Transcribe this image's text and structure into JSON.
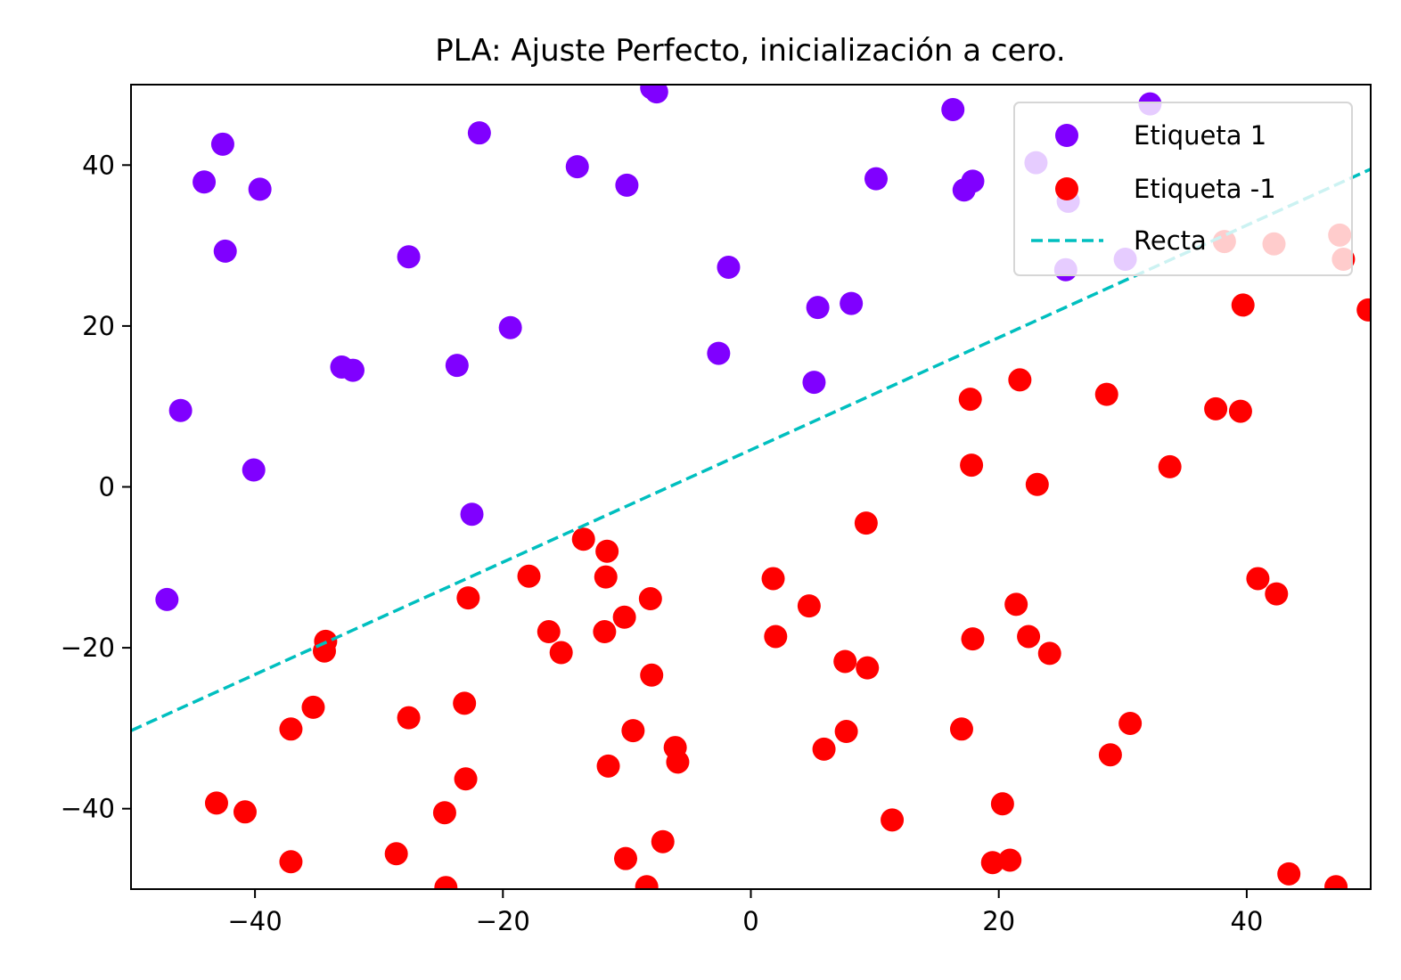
{
  "chart_data": {
    "type": "scatter",
    "title": "PLA: Ajuste Perfecto, inicialización a cero.",
    "xlabel": "",
    "ylabel": "",
    "xlim": [
      -50,
      50
    ],
    "ylim": [
      -50,
      50
    ],
    "xticks": [
      -40,
      -20,
      0,
      20,
      40
    ],
    "yticks": [
      -40,
      -20,
      0,
      20,
      40
    ],
    "xtick_labels": [
      "−40",
      "−20",
      "0",
      "20",
      "40"
    ],
    "ytick_labels": [
      "−40",
      "−20",
      "0",
      "20",
      "40"
    ],
    "grid": false,
    "legend_position": "top-right",
    "series": [
      {
        "name": "Etiqueta 1",
        "color": "#8000ff",
        "points": [
          [
            -47.1,
            -14.0
          ],
          [
            -46.0,
            9.5
          ],
          [
            -44.1,
            37.9
          ],
          [
            -42.6,
            42.6
          ],
          [
            -42.4,
            29.3
          ],
          [
            -40.1,
            2.1
          ],
          [
            -39.6,
            37.0
          ],
          [
            -33.0,
            14.9
          ],
          [
            -32.1,
            14.5
          ],
          [
            -27.6,
            28.6
          ],
          [
            -23.7,
            15.1
          ],
          [
            -22.5,
            -3.4
          ],
          [
            -21.9,
            44.0
          ],
          [
            -19.4,
            19.8
          ],
          [
            -14.0,
            39.8
          ],
          [
            -10.0,
            37.5
          ],
          [
            -8.0,
            49.6
          ],
          [
            -7.6,
            49.1
          ],
          [
            -2.6,
            16.6
          ],
          [
            -1.8,
            27.3
          ],
          [
            5.1,
            13.0
          ],
          [
            5.4,
            22.3
          ],
          [
            8.1,
            22.8
          ],
          [
            10.1,
            38.3
          ],
          [
            16.3,
            46.9
          ],
          [
            17.2,
            36.9
          ],
          [
            17.9,
            38.0
          ],
          [
            23.0,
            40.3
          ],
          [
            25.6,
            35.5
          ],
          [
            25.4,
            27.0
          ],
          [
            30.2,
            28.3
          ],
          [
            32.2,
            47.6
          ]
        ]
      },
      {
        "name": "Etiqueta -1",
        "color": "#ff0000",
        "points": [
          [
            -43.1,
            -39.3
          ],
          [
            -40.8,
            -40.4
          ],
          [
            -37.1,
            -30.1
          ],
          [
            -37.1,
            -46.6
          ],
          [
            -35.3,
            -27.4
          ],
          [
            -34.3,
            -19.2
          ],
          [
            -34.4,
            -20.4
          ],
          [
            -28.6,
            -45.6
          ],
          [
            -27.6,
            -28.7
          ],
          [
            -24.7,
            -40.5
          ],
          [
            -24.6,
            -49.8
          ],
          [
            -23.1,
            -26.9
          ],
          [
            -23.0,
            -36.3
          ],
          [
            -22.8,
            -13.8
          ],
          [
            -17.9,
            -11.1
          ],
          [
            -16.3,
            -18.0
          ],
          [
            -15.3,
            -20.6
          ],
          [
            -13.5,
            -6.5
          ],
          [
            -11.6,
            -8.0
          ],
          [
            -11.7,
            -11.2
          ],
          [
            -11.8,
            -18.0
          ],
          [
            -11.5,
            -34.7
          ],
          [
            -10.2,
            -16.2
          ],
          [
            -10.1,
            -46.2
          ],
          [
            -9.5,
            -30.3
          ],
          [
            -8.4,
            -49.7
          ],
          [
            -8.1,
            -13.9
          ],
          [
            -8.0,
            -23.4
          ],
          [
            -7.1,
            -44.1
          ],
          [
            -6.1,
            -32.4
          ],
          [
            -5.9,
            -34.2
          ],
          [
            1.8,
            -11.4
          ],
          [
            2.0,
            -18.6
          ],
          [
            4.7,
            -14.8
          ],
          [
            5.9,
            -32.6
          ],
          [
            7.6,
            -21.7
          ],
          [
            7.7,
            -30.4
          ],
          [
            9.4,
            -22.5
          ],
          [
            9.3,
            -4.5
          ],
          [
            11.4,
            -41.4
          ],
          [
            17.0,
            -30.1
          ],
          [
            17.7,
            10.9
          ],
          [
            17.8,
            2.7
          ],
          [
            17.9,
            -18.9
          ],
          [
            19.5,
            -46.7
          ],
          [
            20.3,
            -39.4
          ],
          [
            20.9,
            -46.4
          ],
          [
            21.4,
            -14.6
          ],
          [
            21.7,
            13.3
          ],
          [
            22.4,
            -18.6
          ],
          [
            23.1,
            0.3
          ],
          [
            24.1,
            -20.7
          ],
          [
            28.7,
            11.5
          ],
          [
            29.0,
            -33.3
          ],
          [
            30.6,
            -29.4
          ],
          [
            33.8,
            2.5
          ],
          [
            37.5,
            9.7
          ],
          [
            38.2,
            30.5
          ],
          [
            39.5,
            9.4
          ],
          [
            39.7,
            22.6
          ],
          [
            40.9,
            -11.4
          ],
          [
            42.4,
            -13.3
          ],
          [
            42.2,
            30.2
          ],
          [
            43.4,
            -48.1
          ],
          [
            47.2,
            -49.7
          ],
          [
            47.5,
            31.3
          ],
          [
            47.8,
            28.3
          ],
          [
            49.8,
            22.0
          ]
        ]
      },
      {
        "name": "Recta",
        "color": "#00bfbf",
        "style": "dashed",
        "line": [
          [
            -50,
            -30.3
          ],
          [
            50,
            39.5
          ]
        ]
      }
    ]
  }
}
